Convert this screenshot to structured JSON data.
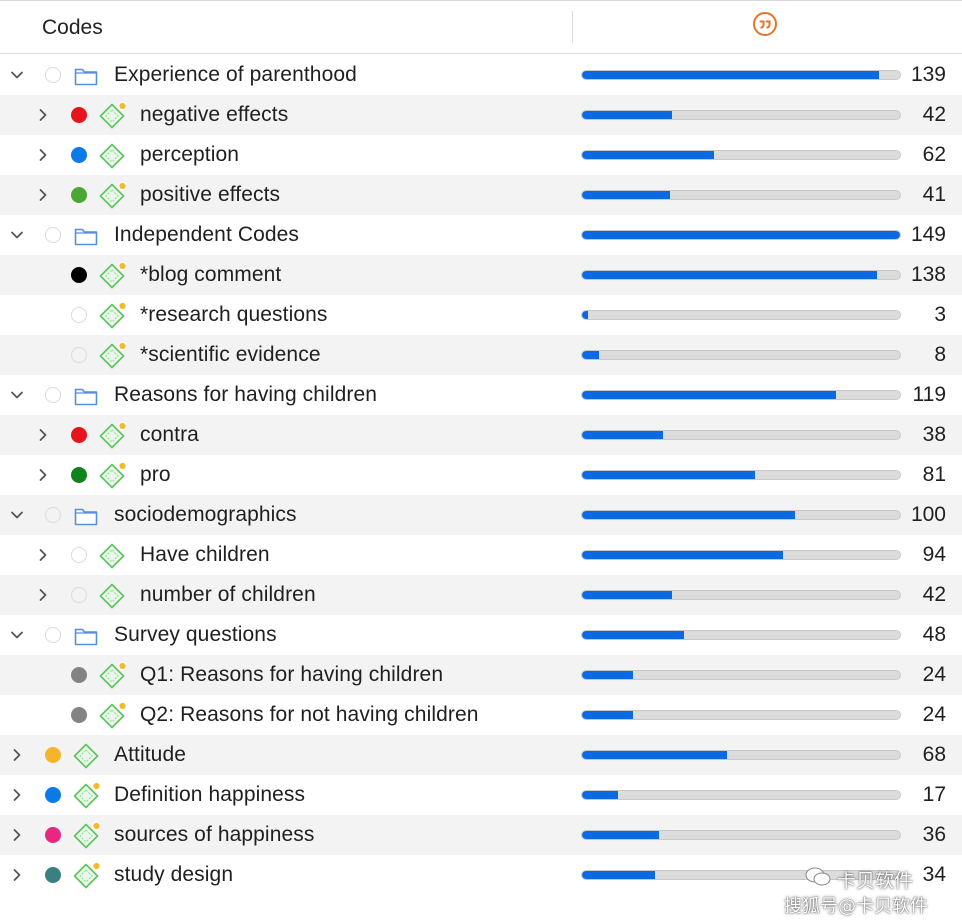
{
  "header": {
    "codes_label": "Codes",
    "quotes_icon": "quotation-icon",
    "accent": "#e8722a"
  },
  "colors": {
    "bar_fill": "#0a6ae6",
    "bar_track": "#dcdcdc",
    "code_icon": "#5cc45c",
    "memo_badge": "#f5b82e"
  },
  "codes": [
    {
      "label": "Experience of parenthood",
      "count": "139",
      "value": 139,
      "level": 0,
      "type": "folder",
      "chevron": "down",
      "color": null
    },
    {
      "label": "negative effects",
      "count": "42",
      "value": 42,
      "level": 1,
      "type": "code",
      "chevron": "right",
      "color": "#e6141e",
      "memo": true
    },
    {
      "label": "perception",
      "count": "62",
      "value": 62,
      "level": 1,
      "type": "code",
      "chevron": "right",
      "color": "#0a7ae6",
      "memo": false
    },
    {
      "label": "positive effects",
      "count": "41",
      "value": 41,
      "level": 1,
      "type": "code",
      "chevron": "right",
      "color": "#4aa832",
      "memo": true
    },
    {
      "label": "Independent Codes",
      "count": "149",
      "value": 149,
      "level": 0,
      "type": "folder",
      "chevron": "down",
      "color": null
    },
    {
      "label": "*blog comment",
      "count": "138",
      "value": 138,
      "level": 1,
      "type": "code",
      "chevron": "none",
      "color": "#000000",
      "memo": true
    },
    {
      "label": "*research questions",
      "count": "3",
      "value": 3,
      "level": 1,
      "type": "code",
      "chevron": "none",
      "color": null,
      "memo": true
    },
    {
      "label": "*scientific evidence",
      "count": "8",
      "value": 8,
      "level": 1,
      "type": "code",
      "chevron": "none",
      "color": null,
      "memo": true
    },
    {
      "label": "Reasons for having children",
      "count": "119",
      "value": 119,
      "level": 0,
      "type": "folder",
      "chevron": "down",
      "color": null
    },
    {
      "label": "contra",
      "count": "38",
      "value": 38,
      "level": 1,
      "type": "code",
      "chevron": "right",
      "color": "#e6141e",
      "memo": true
    },
    {
      "label": "pro",
      "count": "81",
      "value": 81,
      "level": 1,
      "type": "code",
      "chevron": "right",
      "color": "#10821e",
      "memo": true
    },
    {
      "label": "sociodemographics",
      "count": "100",
      "value": 100,
      "level": 0,
      "type": "folder",
      "chevron": "down",
      "color": null
    },
    {
      "label": "Have children",
      "count": "94",
      "value": 94,
      "level": 1,
      "type": "code",
      "chevron": "right",
      "color": null,
      "memo": false
    },
    {
      "label": "number of children",
      "count": "42",
      "value": 42,
      "level": 1,
      "type": "code",
      "chevron": "right",
      "color": null,
      "memo": false
    },
    {
      "label": "Survey questions",
      "count": "48",
      "value": 48,
      "level": 0,
      "type": "folder",
      "chevron": "down",
      "color": null
    },
    {
      "label": "Q1: Reasons for having children",
      "count": "24",
      "value": 24,
      "level": 1,
      "type": "code",
      "chevron": "none",
      "color": "#848484",
      "memo": true
    },
    {
      "label": "Q2: Reasons for not having children",
      "count": "24",
      "value": 24,
      "level": 1,
      "type": "code",
      "chevron": "none",
      "color": "#848484",
      "memo": true
    },
    {
      "label": "Attitude",
      "count": "68",
      "value": 68,
      "level": 0,
      "type": "code",
      "chevron": "right",
      "color": "#f5b42a",
      "memo": false
    },
    {
      "label": "Definition happiness",
      "count": "17",
      "value": 17,
      "level": 0,
      "type": "code",
      "chevron": "right",
      "color": "#0a7ae6",
      "memo": true
    },
    {
      "label": "sources of happiness",
      "count": "36",
      "value": 36,
      "level": 0,
      "type": "code",
      "chevron": "right",
      "color": "#e62882",
      "memo": true
    },
    {
      "label": "study design",
      "count": "34",
      "value": 34,
      "level": 0,
      "type": "code",
      "chevron": "right",
      "color": "#3a8080",
      "memo": true
    }
  ],
  "bar_max": 149,
  "watermark": {
    "line1": "卡贝软件",
    "line2": "搜狐号@卡贝软件"
  }
}
